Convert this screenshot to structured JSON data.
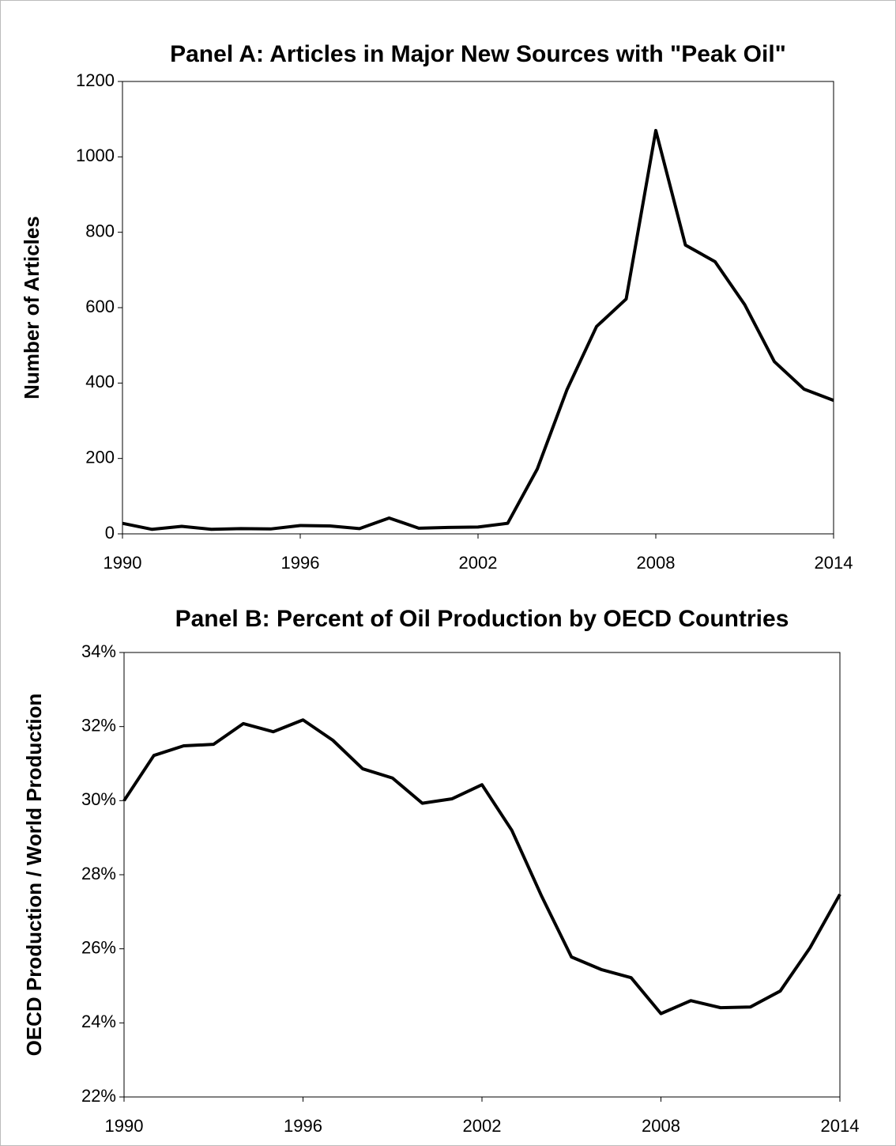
{
  "chart_data": [
    {
      "type": "line",
      "title": "Panel A: Articles in Major New Sources with \"Peak Oil\"",
      "y_label": "Number of Articles",
      "x": [
        1990,
        1991,
        1992,
        1993,
        1994,
        1995,
        1996,
        1997,
        1998,
        1999,
        2000,
        2001,
        2002,
        2003,
        2004,
        2005,
        2006,
        2007,
        2008,
        2009,
        2010,
        2011,
        2012,
        2013,
        2014
      ],
      "values": [
        28,
        12,
        20,
        12,
        14,
        13,
        22,
        21,
        14,
        42,
        15,
        17,
        18,
        28,
        172,
        382,
        550,
        623,
        1070,
        766,
        722,
        608,
        457,
        384,
        354
      ],
      "color": "#000000",
      "xlim": [
        1990,
        2014
      ],
      "xticks": [
        1990,
        1996,
        2002,
        2008,
        2014
      ],
      "ylim": [
        0,
        1200
      ],
      "yticks": [
        0,
        200,
        400,
        600,
        800,
        1000,
        1200
      ]
    },
    {
      "type": "line",
      "title": "Panel B: Percent of Oil Production by OECD Countries",
      "y_label": "OECD Production / World Production",
      "x": [
        1990,
        1991,
        1992,
        1993,
        1994,
        1995,
        1996,
        1997,
        1998,
        1999,
        2000,
        2001,
        2002,
        2003,
        2004,
        2005,
        2006,
        2007,
        2008,
        2009,
        2010,
        2011,
        2012,
        2013,
        2014
      ],
      "values": [
        30.0,
        31.22,
        31.48,
        31.52,
        32.08,
        31.86,
        32.18,
        31.63,
        30.86,
        30.61,
        29.93,
        30.05,
        30.43,
        29.2,
        27.42,
        25.78,
        25.44,
        25.22,
        24.25,
        24.6,
        24.41,
        24.43,
        24.86,
        26.03,
        27.47
      ],
      "color": "#000000",
      "xlim": [
        1990,
        2014
      ],
      "xticks": [
        1990,
        1996,
        2002,
        2008,
        2014
      ],
      "ylim": [
        22,
        34
      ],
      "yticks": [
        {
          "value": 22,
          "label": "22%"
        },
        {
          "value": 24,
          "label": "24%"
        },
        {
          "value": 26,
          "label": "26%"
        },
        {
          "value": 28,
          "label": "28%"
        },
        {
          "value": 30,
          "label": "30%"
        },
        {
          "value": 32,
          "label": "32%"
        },
        {
          "value": 34,
          "label": "34%"
        }
      ]
    }
  ]
}
